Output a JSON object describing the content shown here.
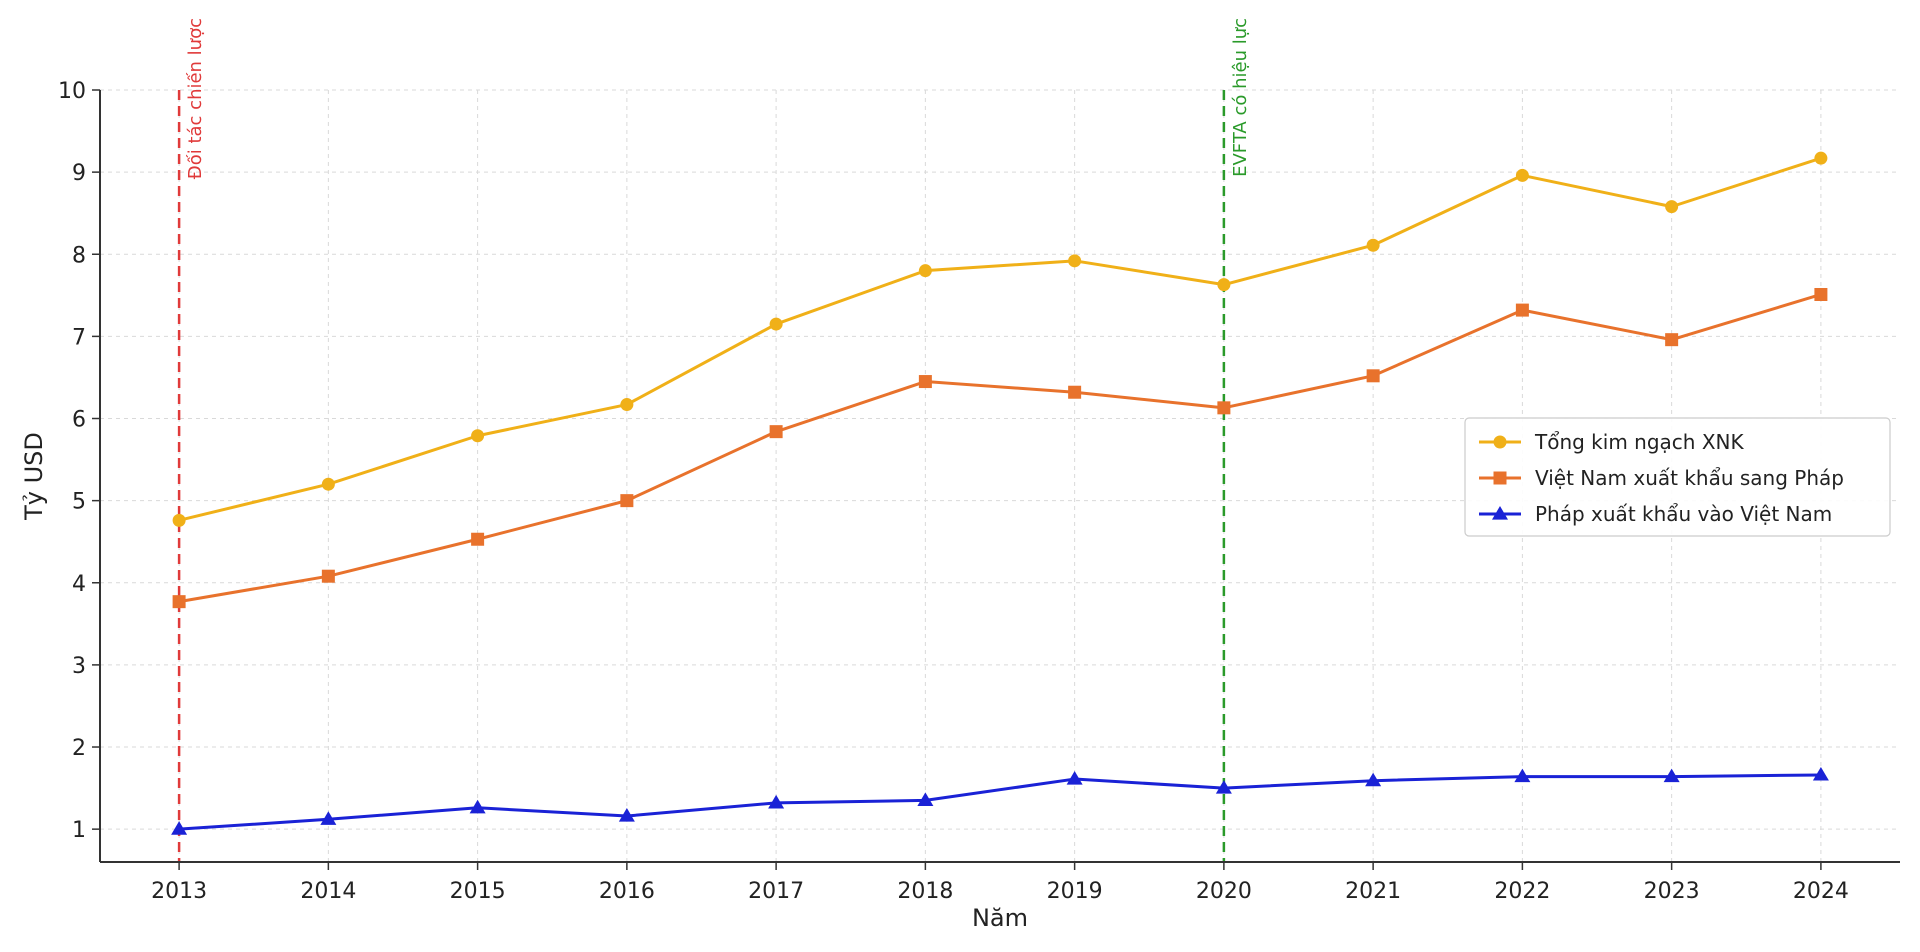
{
  "chart_data": {
    "type": "line",
    "title": "",
    "xlabel": "Năm",
    "ylabel": "Tỷ USD",
    "x": [
      2013,
      2014,
      2015,
      2016,
      2017,
      2018,
      2019,
      2020,
      2021,
      2022,
      2023,
      2024
    ],
    "xlim": [
      2012.47,
      2024.53
    ],
    "ylim": [
      0.6,
      10.0
    ],
    "yticks": [
      1,
      2,
      3,
      4,
      5,
      6,
      7,
      8,
      9,
      10
    ],
    "grid": true,
    "legend_position": "center-right",
    "series": [
      {
        "name": "Tổng kim ngạch XNK",
        "color": "#f0b018",
        "marker": "circle",
        "values": [
          4.76,
          5.2,
          5.79,
          6.17,
          7.15,
          7.8,
          7.92,
          7.63,
          8.11,
          8.96,
          8.58,
          9.17
        ]
      },
      {
        "name": "Việt Nam xuất khẩu sang Pháp",
        "color": "#e8722c",
        "marker": "square",
        "values": [
          3.77,
          4.08,
          4.53,
          5.0,
          5.84,
          6.45,
          6.32,
          6.13,
          6.52,
          7.32,
          6.96,
          7.51
        ]
      },
      {
        "name": "Pháp xuất khẩu vào Việt Nam",
        "color": "#1a22d6",
        "marker": "triangle",
        "values": [
          1.0,
          1.12,
          1.26,
          1.16,
          1.32,
          1.35,
          1.61,
          1.5,
          1.59,
          1.64,
          1.64,
          1.66
        ]
      }
    ],
    "annotations": [
      {
        "x": 2013,
        "label": "Đối tác chiến lược",
        "color": "#e03a3a"
      },
      {
        "x": 2020,
        "label": "EVFTA có hiệu lực",
        "color": "#2a9a2a"
      }
    ]
  }
}
